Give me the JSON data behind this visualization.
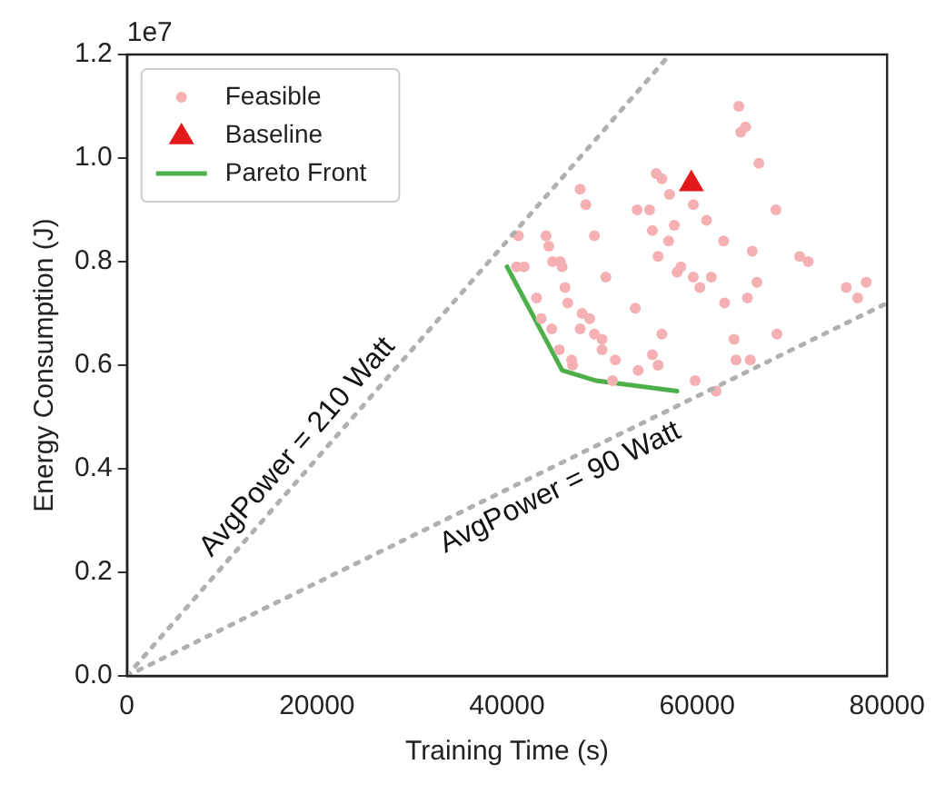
{
  "chart_data": {
    "type": "scatter",
    "xlabel": "Training Time (s)",
    "ylabel": "Energy Consumption (J)",
    "xlim": [
      0,
      80000
    ],
    "xticks": [
      0,
      20000,
      40000,
      60000,
      80000
    ],
    "ylim": [
      0,
      1.2
    ],
    "yticks": [
      {
        "value": 0,
        "label": "0.0"
      },
      0.2,
      0.4,
      0.6,
      0.8,
      {
        "value": 1,
        "label": "1.0"
      },
      1.2
    ],
    "legend": "top left",
    "grid": false,
    "annotations": [
      "1e7",
      {
        "text": "AvgPower = 210 Watt",
        "x": 19700,
        "y": 0.414
      },
      {
        "text": "AvgPower = 90 Watt",
        "x": 44600,
        "y": 0.401
      }
    ],
    "series": [
      {
        "type": "line",
        "color": "#b0b0b0",
        "line_style": "dotted",
        "x": [
          0,
          57000
        ],
        "values": [
          0,
          1.197
        ]
      },
      {
        "type": "line",
        "color": "#b0b0b0",
        "line_style": "dotted",
        "x": [
          0,
          80000
        ],
        "values": [
          0,
          0.72
        ]
      },
      {
        "name": "Feasible",
        "type": "scatter",
        "marker": "circle",
        "color": "#f5b0b3",
        "x": [
          64400,
          65100,
          64600,
          66500,
          55700,
          56300,
          57100,
          59600,
          47700,
          48300,
          53700,
          55000,
          68300,
          57600,
          61000,
          55300,
          49200,
          41200,
          44100,
          44400,
          57000,
          62800,
          65800,
          55900,
          70800,
          71700,
          58300,
          57900,
          44800,
          45600,
          45800,
          41800,
          41000,
          50400,
          59600,
          61500,
          60300,
          66300,
          77800,
          75700,
          76900,
          65300,
          46100,
          46400,
          43100,
          62900,
          53500,
          47900,
          48700,
          43600,
          44700,
          47700,
          49200,
          50000,
          50000,
          45500,
          56300,
          68400,
          63900,
          55300,
          51400,
          55900,
          53800,
          46800,
          46900,
          64100,
          65600,
          51100,
          59800,
          62000
        ],
        "values": [
          1.1,
          1.06,
          1.05,
          0.99,
          0.97,
          0.96,
          0.93,
          0.91,
          0.94,
          0.91,
          0.9,
          0.9,
          0.9,
          0.87,
          0.88,
          0.86,
          0.85,
          0.85,
          0.85,
          0.83,
          0.84,
          0.84,
          0.82,
          0.81,
          0.81,
          0.8,
          0.79,
          0.78,
          0.8,
          0.8,
          0.79,
          0.79,
          0.79,
          0.77,
          0.77,
          0.77,
          0.75,
          0.76,
          0.76,
          0.75,
          0.73,
          0.73,
          0.75,
          0.72,
          0.73,
          0.72,
          0.71,
          0.7,
          0.69,
          0.69,
          0.67,
          0.67,
          0.66,
          0.65,
          0.63,
          0.63,
          0.66,
          0.66,
          0.65,
          0.62,
          0.61,
          0.6,
          0.59,
          0.61,
          0.6,
          0.61,
          0.61,
          0.57,
          0.57,
          0.55
        ]
      },
      {
        "name": "Baseline",
        "type": "scatter",
        "marker": "triangle",
        "color": "#e31a1c",
        "x": [
          59400
        ],
        "values": [
          0.95
        ]
      },
      {
        "name": "Pareto Front",
        "type": "line",
        "color": "#4daf4a",
        "line_style": "solid",
        "x": [
          40000,
          42900,
          45800,
          49400,
          57900
        ],
        "values": [
          0.79,
          0.69,
          0.59,
          0.57,
          0.55
        ]
      }
    ]
  }
}
